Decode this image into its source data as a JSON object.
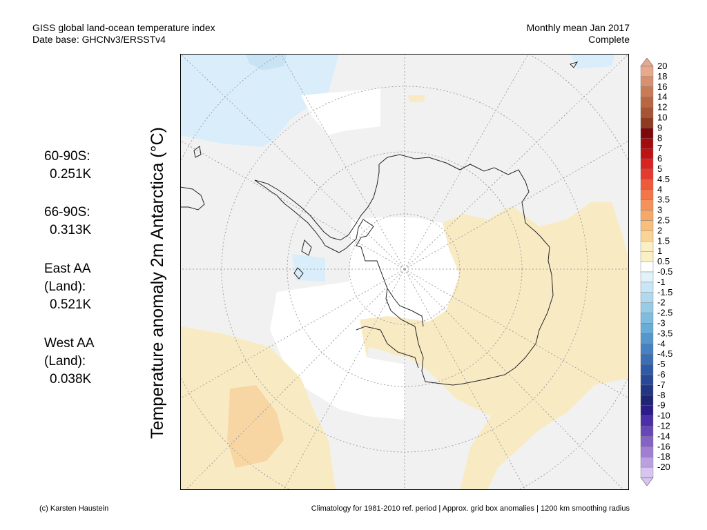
{
  "header": {
    "title_line1": "GISS global land-ocean temperature index",
    "title_line2": "Date base: GHCNv3/ERSSTv4",
    "period_line1": "Monthly mean Jan 2017",
    "period_line2": "Complete"
  },
  "stats": [
    {
      "label_lines": [
        "60-90S:"
      ],
      "value": "0.251K"
    },
    {
      "label_lines": [
        "66-90S:"
      ],
      "value": "0.313K"
    },
    {
      "label_lines": [
        "East AA",
        "(Land):"
      ],
      "value": "0.521K"
    },
    {
      "label_lines": [
        "West AA",
        "(Land):"
      ],
      "value": "0.038K"
    }
  ],
  "y_axis_label": "Temperature anomaly 2m Antarctica (°C)",
  "footer": {
    "credit": "(c) Karsten Haustein",
    "note": "Climatology for 1981-2010 ref. period | Approx. grid box anomalies | 1200 km smoothing radius"
  },
  "colorbar": {
    "labels": [
      "20",
      "18",
      "16",
      "14",
      "12",
      "10",
      "9",
      "8",
      "7",
      "6",
      "5",
      "4.5",
      "4",
      "3.5",
      "3",
      "2.5",
      "2",
      "1.5",
      "1",
      "0.5",
      "-0.5",
      "-1",
      "-1.5",
      "-2",
      "-2.5",
      "-3",
      "-3.5",
      "-4",
      "-4.5",
      "-5",
      "-6",
      "-7",
      "-8",
      "-9",
      "-10",
      "-12",
      "-14",
      "-16",
      "-18",
      "-20"
    ],
    "colors": [
      "#e8a88e",
      "#d9906f",
      "#c97b56",
      "#b76742",
      "#a65433",
      "#8f3a22",
      "#7d0a0a",
      "#a30d0d",
      "#c01212",
      "#d82323",
      "#e53b2f",
      "#ee5a3c",
      "#f2764a",
      "#f5915a",
      "#f6a868",
      "#f7be7c",
      "#f9d494",
      "#faf0c4",
      "#faf0c4",
      "#ffffff",
      "#e2f2fb",
      "#c8e6f5",
      "#b0d9ef",
      "#97cbe6",
      "#7fbcde",
      "#69acd6",
      "#5696cc",
      "#4681c1",
      "#3a6eb6",
      "#2f5aa8",
      "#294896",
      "#233683",
      "#1e2672",
      "#2b1c8a",
      "#4a2fa6",
      "#6646b8",
      "#8462c6",
      "#a07fd3",
      "#bba0e0",
      "#d6c5ef"
    ],
    "anomaly_fill_colors": {
      "warm_weak": "#f8ebc4",
      "warm": "#f8d6a4",
      "cool_weak": "#d9eefa",
      "cool": "#c8e4f4",
      "neutral": "#f1f1f1"
    }
  }
}
